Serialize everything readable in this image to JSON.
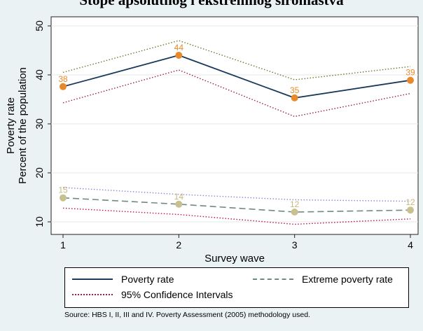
{
  "chart_data": {
    "type": "line",
    "title": "Stope apsolutnog i ekstremnog siromaštva",
    "xlabel": "Survey wave",
    "ylabel_lines": [
      "Poverty rate",
      "Percent of the population"
    ],
    "x": [
      1,
      2,
      3,
      4
    ],
    "x_ticks": [
      "1",
      "2",
      "3",
      "4"
    ],
    "xlim": [
      0.9,
      4.1
    ],
    "ylim": [
      7.5,
      52
    ],
    "y_ticks": [
      "10",
      "20",
      "30",
      "40",
      "50"
    ],
    "grid": "horizontal",
    "series": [
      {
        "key": "poverty",
        "name": "Poverty rate",
        "color": "#1a3a5c",
        "style": "solid",
        "values": [
          37.6,
          44.0,
          35.3,
          38.9
        ],
        "labels": [
          "38",
          "44",
          "35",
          "39"
        ],
        "marker_color": "#e8892a",
        "label_color": "#e8892a"
      },
      {
        "key": "poverty_upper",
        "color": "#6b7a2a",
        "style": "dotted",
        "values": [
          40.5,
          47.0,
          39.0,
          41.7
        ]
      },
      {
        "key": "poverty_lower",
        "color": "#9a1f4a",
        "style": "dotted",
        "values": [
          34.3,
          41.0,
          31.5,
          36.2
        ]
      },
      {
        "key": "extreme",
        "name": "Extreme poverty rate",
        "color": "#6f8a82",
        "style": "dashed",
        "values": [
          14.9,
          13.6,
          12.0,
          12.4
        ],
        "labels": [
          "15",
          "14",
          "12",
          "12"
        ],
        "marker_color": "#c8c08e",
        "label_color": "#c8b87a"
      },
      {
        "key": "extreme_upper",
        "color": "#8a8ad6",
        "style": "dotted",
        "values": [
          17.0,
          15.6,
          14.5,
          14.2
        ]
      },
      {
        "key": "extreme_lower",
        "color": "#c0104a",
        "style": "dotted",
        "values": [
          12.8,
          11.5,
          9.5,
          10.6
        ]
      }
    ],
    "legend": {
      "position": "bottom",
      "items": [
        {
          "label": "Poverty rate",
          "color": "#1a3a5c",
          "style": "solid"
        },
        {
          "label": "Extreme poverty rate",
          "color": "#6f8a82",
          "style": "dashed"
        },
        {
          "label": "95% Confidence Intervals",
          "color": "#9a1f4a",
          "style": "dotted"
        }
      ]
    }
  },
  "source_note": "Source: HBS I, II, III and IV. Poverty Assessment (2005) methodology used."
}
